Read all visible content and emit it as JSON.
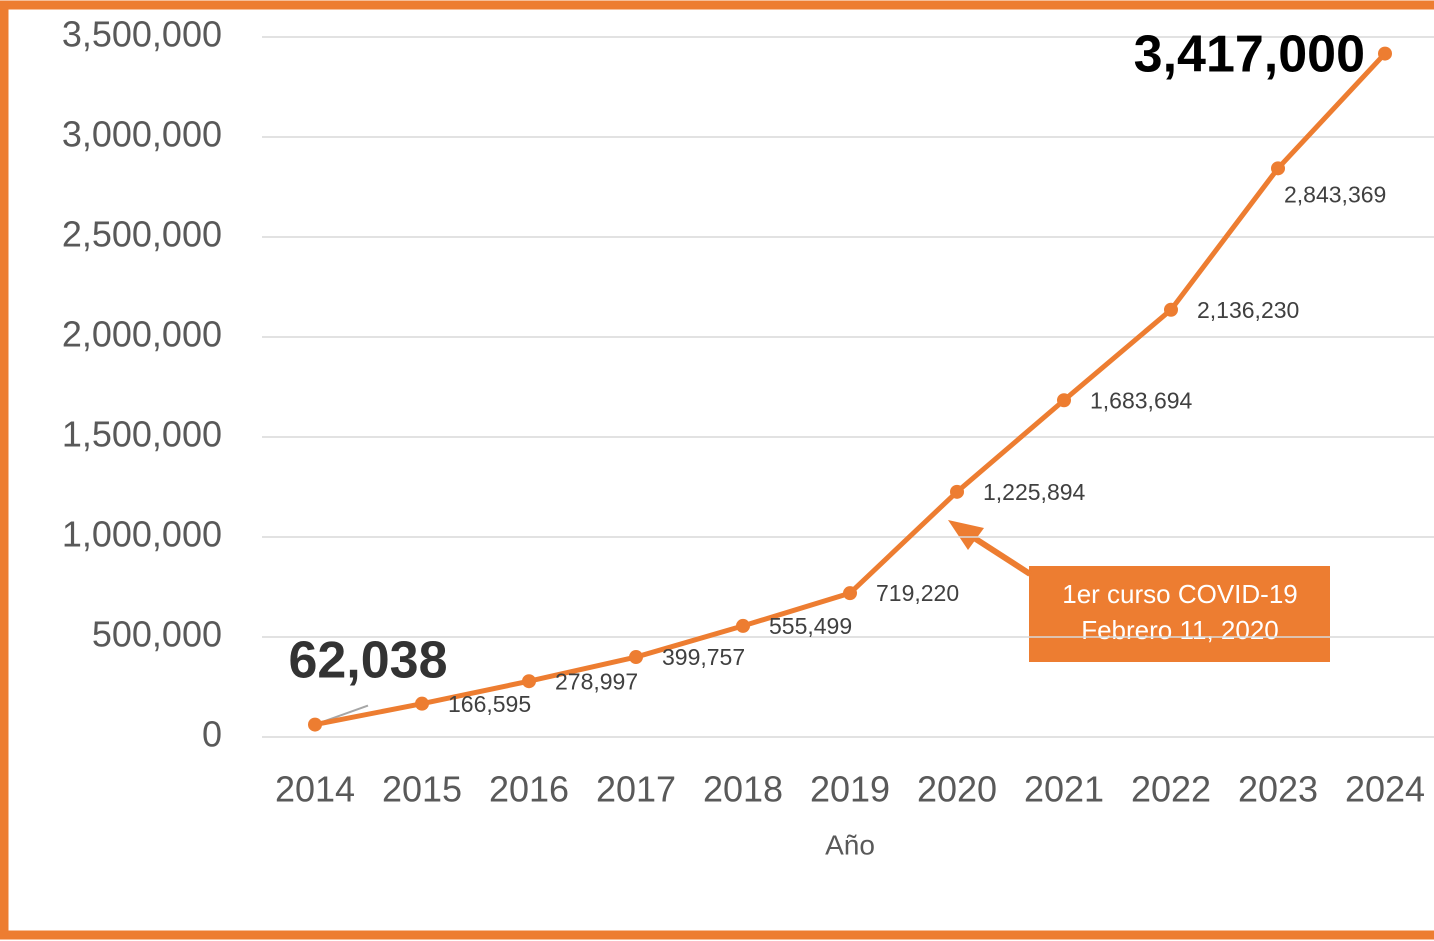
{
  "chart_data": {
    "type": "line",
    "x_label": "Año",
    "categories": [
      "2014",
      "2015",
      "2016",
      "2017",
      "2018",
      "2019",
      "2020",
      "2021",
      "2022",
      "2023",
      "2024"
    ],
    "values": [
      62038,
      166595,
      278997,
      399757,
      555499,
      719220,
      1225894,
      1683694,
      2136230,
      2843369,
      3417000
    ],
    "value_labels": [
      "62,038",
      "166,595",
      "278,997",
      "399,757",
      "555,499",
      "719,220",
      "1,225,894",
      "1,683,694",
      "2,136,230",
      "2,843,369",
      "3,417,000"
    ],
    "color": "#ed7d31",
    "ylim": [
      0,
      3500000
    ],
    "yticks": [
      0,
      {
        "value": 500000,
        "label": "500,000"
      },
      {
        "value": 1000000,
        "label": "1,000,000"
      },
      {
        "value": 1500000,
        "label": "1,500,000"
      },
      {
        "value": 2000000,
        "label": "2,000,000"
      },
      {
        "value": 2500000,
        "label": "2,500,000"
      },
      {
        "value": 3000000,
        "label": "3,000,000"
      },
      {
        "value": 3500000,
        "label": "3,500,000"
      }
    ],
    "grid": true,
    "annotation": [
      "1er curso  COVID-19",
      "Febrero 11, 2020"
    ]
  }
}
